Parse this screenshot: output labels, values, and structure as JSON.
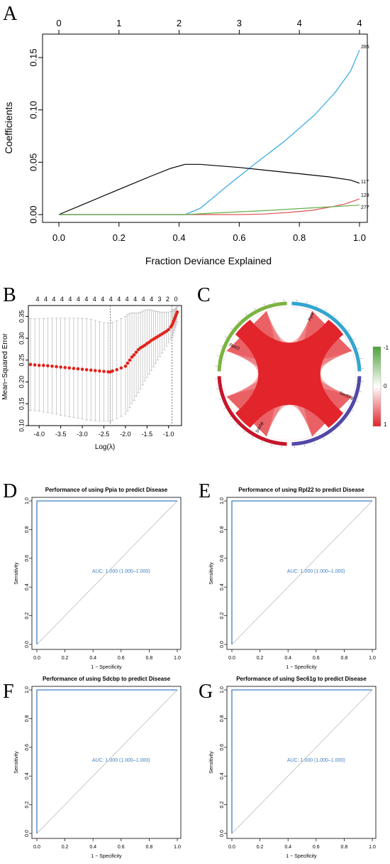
{
  "panel_letters": {
    "a": "A",
    "b": "B",
    "c": "C",
    "d": "D",
    "e": "E",
    "f": "F",
    "g": "G"
  },
  "chart_data": [
    {
      "panel": "A",
      "type": "line",
      "xlabel": "Fraction Deviance Explained",
      "ylabel": "Coefficients",
      "xlim": [
        0,
        1
      ],
      "ylim": [
        -0.005,
        0.16
      ],
      "x_ticks": [
        "0.0",
        "0.2",
        "0.4",
        "0.6",
        "0.8",
        "1.0"
      ],
      "y_ticks": [
        "0.00",
        "0.05",
        "0.10",
        "0.15"
      ],
      "top_ticks": [
        "0",
        "1",
        "2",
        "3",
        "4",
        "4"
      ],
      "top_tick_x": [
        0,
        0.2,
        0.4,
        0.6,
        0.8,
        1.0
      ],
      "series": [
        {
          "name": "285",
          "color": "#2fa6de",
          "x": [
            0,
            0.42,
            0.47,
            0.55,
            0.65,
            0.75,
            0.85,
            0.92,
            0.97,
            1.0
          ],
          "y": [
            0,
            0,
            0.006,
            0.025,
            0.048,
            0.07,
            0.095,
            0.117,
            0.137,
            0.157
          ]
        },
        {
          "name": "117",
          "color": "#000000",
          "x": [
            0,
            0.1,
            0.2,
            0.3,
            0.37,
            0.42,
            0.47,
            0.6,
            0.7,
            0.8,
            0.9,
            0.97,
            1.0
          ],
          "y": [
            0,
            0.012,
            0.024,
            0.036,
            0.044,
            0.048,
            0.048,
            0.045,
            0.042,
            0.039,
            0.036,
            0.033,
            0.03
          ]
        },
        {
          "name": "128",
          "color": "#df5353",
          "x": [
            0,
            0.6,
            0.68,
            0.76,
            0.84,
            0.9,
            0.95,
            1.0
          ],
          "y": [
            0,
            0,
            0.0005,
            0.002,
            0.004,
            0.007,
            0.01,
            0.015
          ]
        },
        {
          "name": "277",
          "color": "#61b04a",
          "x": [
            0,
            0.42,
            0.55,
            0.7,
            0.85,
            1.0
          ],
          "y": [
            0,
            0,
            0.002,
            0.004,
            0.0065,
            0.009
          ]
        }
      ]
    },
    {
      "panel": "B",
      "type": "scatter",
      "xlabel": "Log(λ)",
      "ylabel": "Mean−Squared Error",
      "xlim": [
        -4.25,
        -0.7
      ],
      "ylim": [
        0.1,
        0.375
      ],
      "x_ticks": [
        "-4.0",
        "-3.5",
        "-3.0",
        "-2.5",
        "-2.0",
        "-1.5",
        "-1.0"
      ],
      "y_ticks": [
        "0.10",
        "0.15",
        "0.20",
        "0.25",
        "0.30",
        "0.35"
      ],
      "top_ticks": [
        "4",
        "4",
        "4",
        "4",
        "4",
        "4",
        "4",
        "4",
        "4",
        "4",
        "4",
        "4",
        "4",
        "4",
        "4",
        "3",
        "2",
        "0"
      ],
      "vlines": [
        -2.35,
        -0.92
      ],
      "point_color": "#e2231a",
      "x": [
        -4.2,
        -4.1,
        -4.0,
        -3.9,
        -3.8,
        -3.7,
        -3.6,
        -3.5,
        -3.4,
        -3.3,
        -3.2,
        -3.1,
        -3.0,
        -2.9,
        -2.8,
        -2.7,
        -2.6,
        -2.5,
        -2.4,
        -2.35,
        -2.3,
        -2.2,
        -2.1,
        -2.0,
        -1.95,
        -1.9,
        -1.85,
        -1.8,
        -1.75,
        -1.7,
        -1.65,
        -1.6,
        -1.55,
        -1.5,
        -1.45,
        -1.4,
        -1.35,
        -1.3,
        -1.25,
        -1.2,
        -1.15,
        -1.1,
        -1.05,
        -1.0,
        -0.95,
        -0.92,
        -0.9,
        -0.88,
        -0.86,
        -0.84,
        -0.82,
        -0.8
      ],
      "y": [
        0.24,
        0.239,
        0.238,
        0.238,
        0.237,
        0.236,
        0.235,
        0.234,
        0.233,
        0.232,
        0.231,
        0.23,
        0.229,
        0.228,
        0.227,
        0.226,
        0.225,
        0.224,
        0.223,
        0.223,
        0.225,
        0.228,
        0.232,
        0.236,
        0.243,
        0.25,
        0.257,
        0.262,
        0.268,
        0.274,
        0.278,
        0.281,
        0.284,
        0.288,
        0.291,
        0.295,
        0.298,
        0.301,
        0.304,
        0.307,
        0.31,
        0.313,
        0.316,
        0.32,
        0.326,
        0.33,
        0.335,
        0.34,
        0.345,
        0.35,
        0.355,
        0.36
      ],
      "upper": [
        0.345,
        0.345,
        0.345,
        0.345,
        0.346,
        0.346,
        0.346,
        0.346,
        0.346,
        0.346,
        0.346,
        0.346,
        0.346,
        0.345,
        0.343,
        0.341,
        0.338,
        0.336,
        0.335,
        0.335,
        0.337,
        0.34,
        0.345,
        0.35,
        0.354,
        0.357,
        0.358,
        0.358,
        0.358,
        0.358,
        0.36,
        0.362,
        0.364,
        0.365,
        0.366,
        0.365,
        0.363,
        0.362,
        0.361,
        0.36,
        0.36,
        0.36,
        0.36,
        0.36,
        0.361,
        0.362,
        0.363,
        0.364,
        0.366,
        0.368,
        0.37,
        0.372
      ],
      "lower": [
        0.135,
        0.134,
        0.133,
        0.131,
        0.13,
        0.128,
        0.126,
        0.124,
        0.122,
        0.12,
        0.119,
        0.117,
        0.115,
        0.113,
        0.112,
        0.111,
        0.11,
        0.11,
        0.11,
        0.11,
        0.112,
        0.116,
        0.121,
        0.126,
        0.133,
        0.141,
        0.15,
        0.158,
        0.167,
        0.175,
        0.184,
        0.193,
        0.202,
        0.21,
        0.218,
        0.226,
        0.234,
        0.242,
        0.25,
        0.258,
        0.266,
        0.274,
        0.282,
        0.29,
        0.298,
        0.302,
        0.306,
        0.312,
        0.318,
        0.324,
        0.33,
        0.336
      ]
    },
    {
      "panel": "C",
      "type": "chord",
      "sectors": [
        "Ppia",
        "Sec61g",
        "Sdcbp",
        "Rpl22"
      ],
      "sector_colors": [
        "#7cb342",
        "#34a5cf",
        "#5248a8",
        "#c4162a"
      ],
      "chord_color": "#e2242c",
      "legend_ticks": [
        "-1",
        "0",
        "1"
      ],
      "legend_colors": [
        "#4da13a",
        "#ffffff",
        "#e2242c"
      ]
    },
    {
      "panel": "D",
      "type": "line",
      "title": "Performance of using Ppia to predict Disease",
      "xlabel": "1 − Specificity",
      "ylabel": "Sensitivity",
      "xlim": [
        0,
        1
      ],
      "ylim": [
        0,
        1
      ],
      "x_ticks": [
        "0.0",
        "0.2",
        "0.4",
        "0.6",
        "0.8",
        "1.0"
      ],
      "y_ticks": [
        "0.0",
        "0.2",
        "0.4",
        "0.6",
        "0.8",
        "1.0"
      ],
      "roc_x": [
        0,
        0,
        1
      ],
      "roc_y": [
        0,
        1,
        1
      ],
      "auc_text": "AUC: 1.000 (1.000–1.000)"
    },
    {
      "panel": "E",
      "type": "line",
      "title": "Performance of using Rpl22 to predict Disease",
      "xlabel": "1 − Specificity",
      "ylabel": "Sensitivity",
      "xlim": [
        0,
        1
      ],
      "ylim": [
        0,
        1
      ],
      "x_ticks": [
        "0.0",
        "0.2",
        "0.4",
        "0.6",
        "0.8",
        "1.0"
      ],
      "y_ticks": [
        "0.0",
        "0.2",
        "0.4",
        "0.6",
        "0.8",
        "1.0"
      ],
      "roc_x": [
        0,
        0,
        1
      ],
      "roc_y": [
        0,
        1,
        1
      ],
      "auc_text": "AUC: 1.000 (1.000–1.000)"
    },
    {
      "panel": "F",
      "type": "line",
      "title": "Performance of using Sdcbp to predict Disease",
      "xlabel": "1 − Specificity",
      "ylabel": "Sensitivity",
      "xlim": [
        0,
        1
      ],
      "ylim": [
        0,
        1
      ],
      "x_ticks": [
        "0.0",
        "0.2",
        "0.4",
        "0.6",
        "0.8",
        "1.0"
      ],
      "y_ticks": [
        "0.0",
        "0.2",
        "0.4",
        "0.6",
        "0.8",
        "1.0"
      ],
      "roc_x": [
        0,
        0,
        1
      ],
      "roc_y": [
        0,
        1,
        1
      ],
      "auc_text": "AUC: 1.000 (1.000–1.000)"
    },
    {
      "panel": "G",
      "type": "line",
      "title": "Performance of using Sec61g to predict Disease",
      "xlabel": "1 − Specificity",
      "ylabel": "Sensitivity",
      "xlim": [
        0,
        1
      ],
      "ylim": [
        0,
        1
      ],
      "x_ticks": [
        "0.0",
        "0.2",
        "0.4",
        "0.6",
        "0.8",
        "1.0"
      ],
      "y_ticks": [
        "0.0",
        "0.2",
        "0.4",
        "0.6",
        "0.8",
        "1.0"
      ],
      "roc_x": [
        0,
        0,
        1
      ],
      "roc_y": [
        0,
        1,
        1
      ],
      "auc_text": "AUC: 1.000 (1.000–1.000)"
    }
  ]
}
